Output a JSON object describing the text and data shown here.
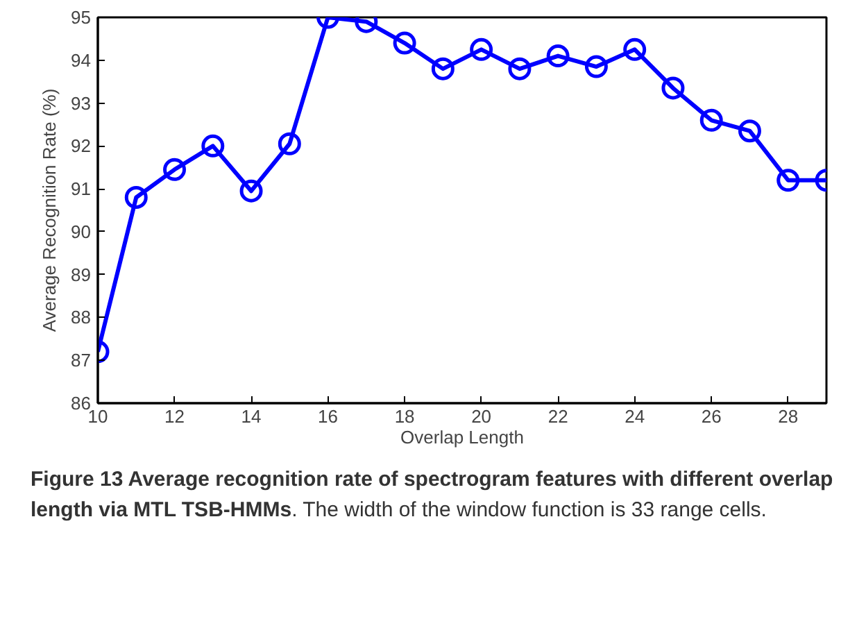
{
  "chart_data": {
    "type": "line",
    "xlabel": "Overlap Length",
    "ylabel": "Average Recognition Rate (%)",
    "x": [
      10,
      11,
      12,
      13,
      14,
      15,
      16,
      17,
      18,
      19,
      20,
      21,
      22,
      23,
      24,
      25,
      26,
      27,
      28,
      29
    ],
    "series": [
      {
        "color": "#0000ff",
        "values": [
          87.2,
          90.8,
          91.45,
          92.0,
          90.95,
          92.05,
          95.0,
          94.9,
          94.4,
          93.8,
          94.25,
          93.8,
          94.1,
          93.85,
          94.25,
          93.35,
          92.6,
          92.35,
          91.2,
          91.2
        ]
      }
    ],
    "marker": "circle",
    "line_style": "solid",
    "grid": false,
    "xlim": [
      10,
      29
    ],
    "xticks": [
      10,
      12,
      14,
      16,
      18,
      20,
      22,
      24,
      26,
      28
    ],
    "ylim": [
      86,
      95
    ],
    "yticks": [
      86,
      87,
      88,
      89,
      90,
      91,
      92,
      93,
      94,
      95
    ],
    "annotations": [
      "Figure 13 Average recognition rate of spectrogram features with different overlap length via MTL TSB-HMMs",
      ". The width of the window function is 33 range cells."
    ]
  }
}
